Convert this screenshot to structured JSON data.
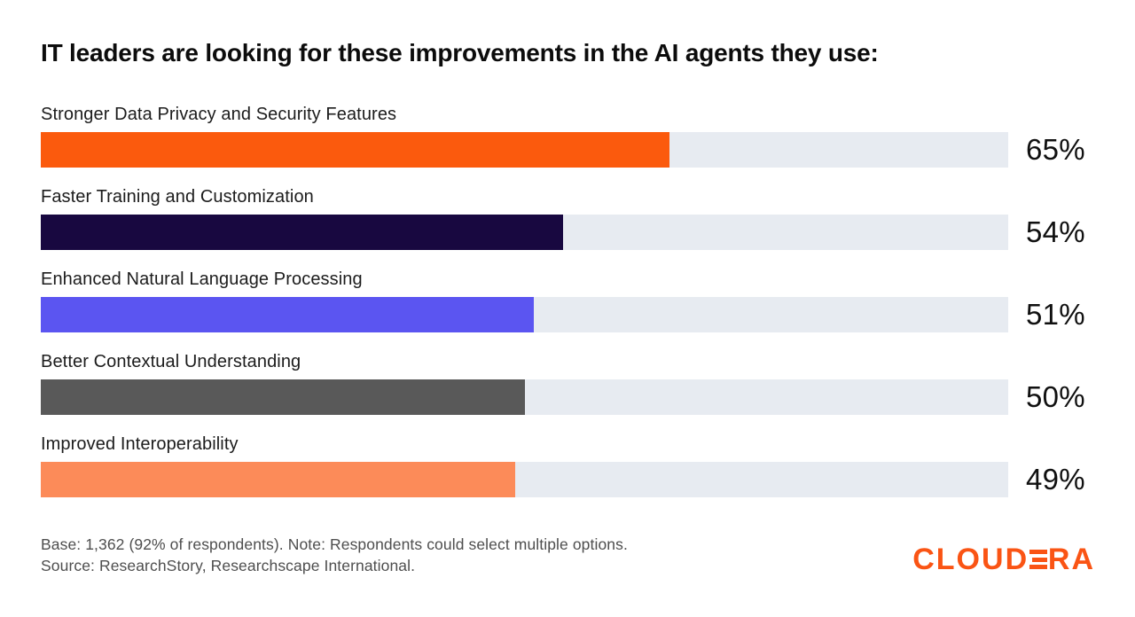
{
  "title": "IT leaders are looking for these improvements in the AI agents they use:",
  "chart_data": {
    "type": "bar",
    "orientation": "horizontal",
    "title": "IT leaders are looking for these improvements in the AI agents they use:",
    "categories": [
      "Stronger Data Privacy and Security Features",
      "Faster Training and Customization",
      "Enhanced Natural Language Processing",
      "Better Contextual Understanding",
      "Improved Interoperability"
    ],
    "values": [
      65,
      54,
      51,
      50,
      49
    ],
    "value_labels": [
      "65%",
      "54%",
      "51%",
      "50%",
      "49%"
    ],
    "xlim": [
      0,
      100
    ],
    "grid": false,
    "legend": false,
    "bar_colors": [
      "#fb5a0d",
      "#180840",
      "#5b55f1",
      "#595959",
      "#fc8b59"
    ],
    "track_color": "#e7ebf1"
  },
  "footer": {
    "note_line1": "Base: 1,362 (92% of respondents). Note: Respondents could select multiple options.",
    "note_line2": "Source: ResearchStory, Researchscape International.",
    "logo_text": "CLOUDERA",
    "logo_color": "#fa5414"
  }
}
